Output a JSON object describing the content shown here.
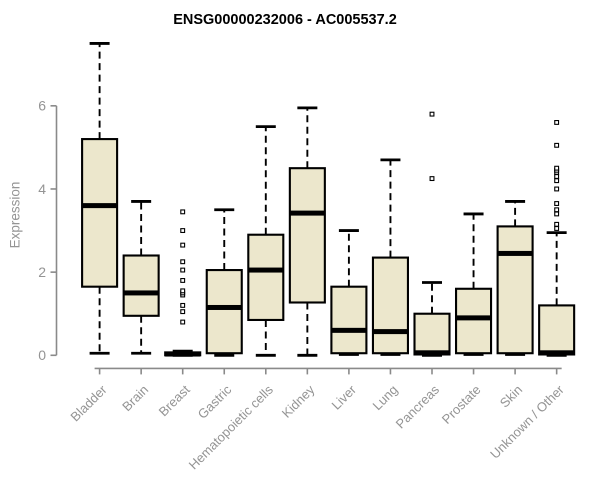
{
  "chart_data": {
    "type": "boxplot",
    "title": "ENSG00000232006 - AC005537.2",
    "xlabel": "",
    "ylabel": "Expression",
    "ylim": [
      0,
      7.6
    ],
    "yticks": [
      0,
      2,
      4,
      6
    ],
    "grid": false,
    "legend": "none",
    "colors": {
      "box_fill": "#ECE7CC",
      "box_border": "#000000",
      "median": "#000000",
      "whisker": "#000000",
      "outlier_fill": "#ffffff",
      "axis": "#8A8A8A",
      "tick_text": "#949494",
      "title_text": "#000000"
    },
    "categories": [
      "Bladder",
      "Brain",
      "Breast",
      "Gastric",
      "Hematopoietic cells",
      "Kidney",
      "Liver",
      "Lung",
      "Pancreas",
      "Prostate",
      "Skin",
      "Unknown / Other"
    ],
    "series": [
      {
        "category": "Bladder",
        "min": 0.05,
        "q1": 1.65,
        "median": 3.6,
        "q3": 5.2,
        "max": 7.5,
        "outliers": []
      },
      {
        "category": "Brain",
        "min": 0.05,
        "q1": 0.95,
        "median": 1.5,
        "q3": 2.4,
        "max": 3.7,
        "outliers": []
      },
      {
        "category": "Breast",
        "min": 0,
        "q1": 0,
        "median": 0.03,
        "q3": 0.07,
        "max": 0.1,
        "outliers": [
          0.8,
          1.05,
          1.2,
          1.45,
          1.5,
          1.55,
          1.8,
          2.05,
          2.25,
          2.65,
          3.0,
          3.45
        ]
      },
      {
        "category": "Gastric",
        "min": 0,
        "q1": 0.05,
        "median": 1.15,
        "q3": 2.05,
        "max": 3.5,
        "outliers": []
      },
      {
        "category": "Hematopoietic cells",
        "min": 0,
        "q1": 0.85,
        "median": 2.05,
        "q3": 2.9,
        "max": 5.5,
        "outliers": []
      },
      {
        "category": "Kidney",
        "min": 0,
        "q1": 1.27,
        "median": 3.42,
        "q3": 4.5,
        "max": 5.95,
        "outliers": []
      },
      {
        "category": "Liver",
        "min": 0.02,
        "q1": 0.05,
        "median": 0.6,
        "q3": 1.65,
        "max": 3.0,
        "outliers": []
      },
      {
        "category": "Lung",
        "min": 0.02,
        "q1": 0.05,
        "median": 0.57,
        "q3": 2.35,
        "max": 4.7,
        "outliers": []
      },
      {
        "category": "Pancreas",
        "min": 0,
        "q1": 0.02,
        "median": 0.06,
        "q3": 1.0,
        "max": 1.75,
        "outliers": [
          4.25,
          5.8
        ]
      },
      {
        "category": "Prostate",
        "min": 0.02,
        "q1": 0.05,
        "median": 0.9,
        "q3": 1.6,
        "max": 3.4,
        "outliers": []
      },
      {
        "category": "Skin",
        "min": 0.02,
        "q1": 0.05,
        "median": 2.45,
        "q3": 3.1,
        "max": 3.7,
        "outliers": []
      },
      {
        "category": "Unknown / Other",
        "min": 0,
        "q1": 0.02,
        "median": 0.06,
        "q3": 1.2,
        "max": 2.95,
        "outliers": [
          3.05,
          3.15,
          3.4,
          3.5,
          3.65,
          4.0,
          4.2,
          4.3,
          4.4,
          4.45,
          4.5,
          5.05,
          5.6
        ]
      }
    ]
  }
}
